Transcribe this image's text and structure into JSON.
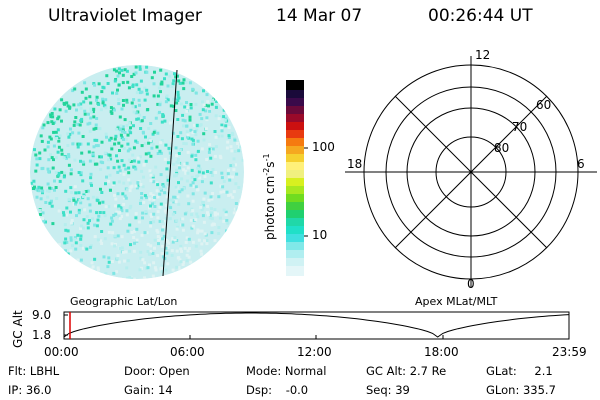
{
  "header": {
    "title": "Ultraviolet Imager",
    "date": "14 Mar 07",
    "time": "00:26:44 UT"
  },
  "colorbar": {
    "ticks": [
      "100",
      "10"
    ],
    "unit_main": "photon cm",
    "unit_sup1": "-2",
    "unit_s": "s",
    "unit_sup2": "-1"
  },
  "polar": {
    "mlt_labels": {
      "top": "12",
      "left": "18",
      "right": "6",
      "bottom": "0"
    },
    "lat_labels": [
      "60",
      "70",
      "80"
    ]
  },
  "projection": {
    "left": "Geographic Lat/Lon",
    "right": "Apex MLat/MLT"
  },
  "altitude_plot": {
    "ylabel": "GC Alt",
    "yticks": [
      "9.0",
      "1.8"
    ],
    "xticks": [
      "00:00",
      "06:00",
      "12:00",
      "18:00",
      "23:59"
    ],
    "marker_color": "#dd0000"
  },
  "status": {
    "flt_label": "Flt:",
    "flt_value": "LBHL",
    "ip_label": "IP:",
    "ip_value": "36.0",
    "door_label": "Door:",
    "door_value": "Open",
    "gain_label": "Gain:",
    "gain_value": "14",
    "mode_label": "Mode:",
    "mode_value": "Normal",
    "dsp_label": "Dsp:",
    "dsp_value": "-0.0",
    "gcalt_label": "GC Alt:",
    "gcalt_value": "2.7 Re",
    "seq_label": "Seq:",
    "seq_value": "39",
    "glat_label": "GLat:",
    "glat_value": "2.1",
    "glon_label": "GLon:",
    "glon_value": "335.7"
  }
}
